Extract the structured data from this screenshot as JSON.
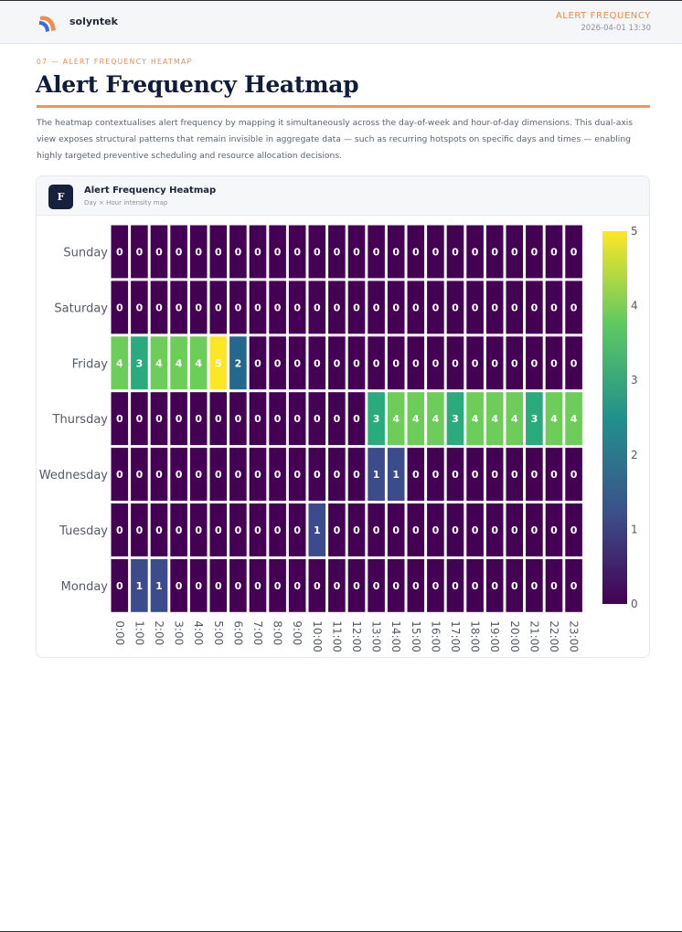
{
  "header": {
    "brand": "solyntek",
    "section_title": "ALERT FREQUENCY",
    "date": "2026-04-01 13:30"
  },
  "section": {
    "eyebrow": "07 — ALERT FREQUENCY HEATMAP",
    "title": "Alert Frequency Heatmap",
    "description": "The heatmap contextualises alert frequency by mapping it simultaneously across the day-of-week and hour-of-day dimensions. This dual-axis view exposes structural patterns that remain invisible in aggregate data — such as recurring hotspots on specific days and times — enabling highly targeted preventive scheduling and resource allocation decisions."
  },
  "card": {
    "badge": "F",
    "title": "Alert Frequency Heatmap",
    "subtitle": "Day × Hour intensity map"
  },
  "chart_data": {
    "type": "heatmap",
    "title": "",
    "xlabel": "",
    "ylabel": "",
    "colorscale": "viridis",
    "zlim": [
      0,
      5
    ],
    "colorbar_ticks": [
      "0",
      "1",
      "2",
      "3",
      "4",
      "5"
    ],
    "x": [
      "0:00",
      "1:00",
      "2:00",
      "3:00",
      "4:00",
      "5:00",
      "6:00",
      "7:00",
      "8:00",
      "9:00",
      "10:00",
      "11:00",
      "12:00",
      "13:00",
      "14:00",
      "15:00",
      "16:00",
      "17:00",
      "18:00",
      "19:00",
      "20:00",
      "21:00",
      "22:00",
      "23:00"
    ],
    "y": [
      "Sunday",
      "Saturday",
      "Friday",
      "Thursday",
      "Wednesday",
      "Tuesday",
      "Monday"
    ],
    "z": [
      [
        0,
        0,
        0,
        0,
        0,
        0,
        0,
        0,
        0,
        0,
        0,
        0,
        0,
        0,
        0,
        0,
        0,
        0,
        0,
        0,
        0,
        0,
        0,
        0
      ],
      [
        0,
        0,
        0,
        0,
        0,
        0,
        0,
        0,
        0,
        0,
        0,
        0,
        0,
        0,
        0,
        0,
        0,
        0,
        0,
        0,
        0,
        0,
        0,
        0
      ],
      [
        4,
        3,
        4,
        4,
        4,
        5,
        2,
        0,
        0,
        0,
        0,
        0,
        0,
        0,
        0,
        0,
        0,
        0,
        0,
        0,
        0,
        0,
        0,
        0
      ],
      [
        0,
        0,
        0,
        0,
        0,
        0,
        0,
        0,
        0,
        0,
        0,
        0,
        0,
        3,
        4,
        4,
        4,
        3,
        4,
        4,
        4,
        3,
        4,
        4
      ],
      [
        0,
        0,
        0,
        0,
        0,
        0,
        0,
        0,
        0,
        0,
        0,
        0,
        0,
        1,
        1,
        0,
        0,
        0,
        0,
        0,
        0,
        0,
        0,
        0
      ],
      [
        0,
        0,
        0,
        0,
        0,
        0,
        0,
        0,
        0,
        0,
        1,
        0,
        0,
        0,
        0,
        0,
        0,
        0,
        0,
        0,
        0,
        0,
        0,
        0
      ],
      [
        0,
        1,
        1,
        0,
        0,
        0,
        0,
        0,
        0,
        0,
        0,
        0,
        0,
        0,
        0,
        0,
        0,
        0,
        0,
        0,
        0,
        0,
        0,
        0
      ]
    ],
    "show_values": true,
    "grid": false,
    "legend": "colorbar-right"
  }
}
